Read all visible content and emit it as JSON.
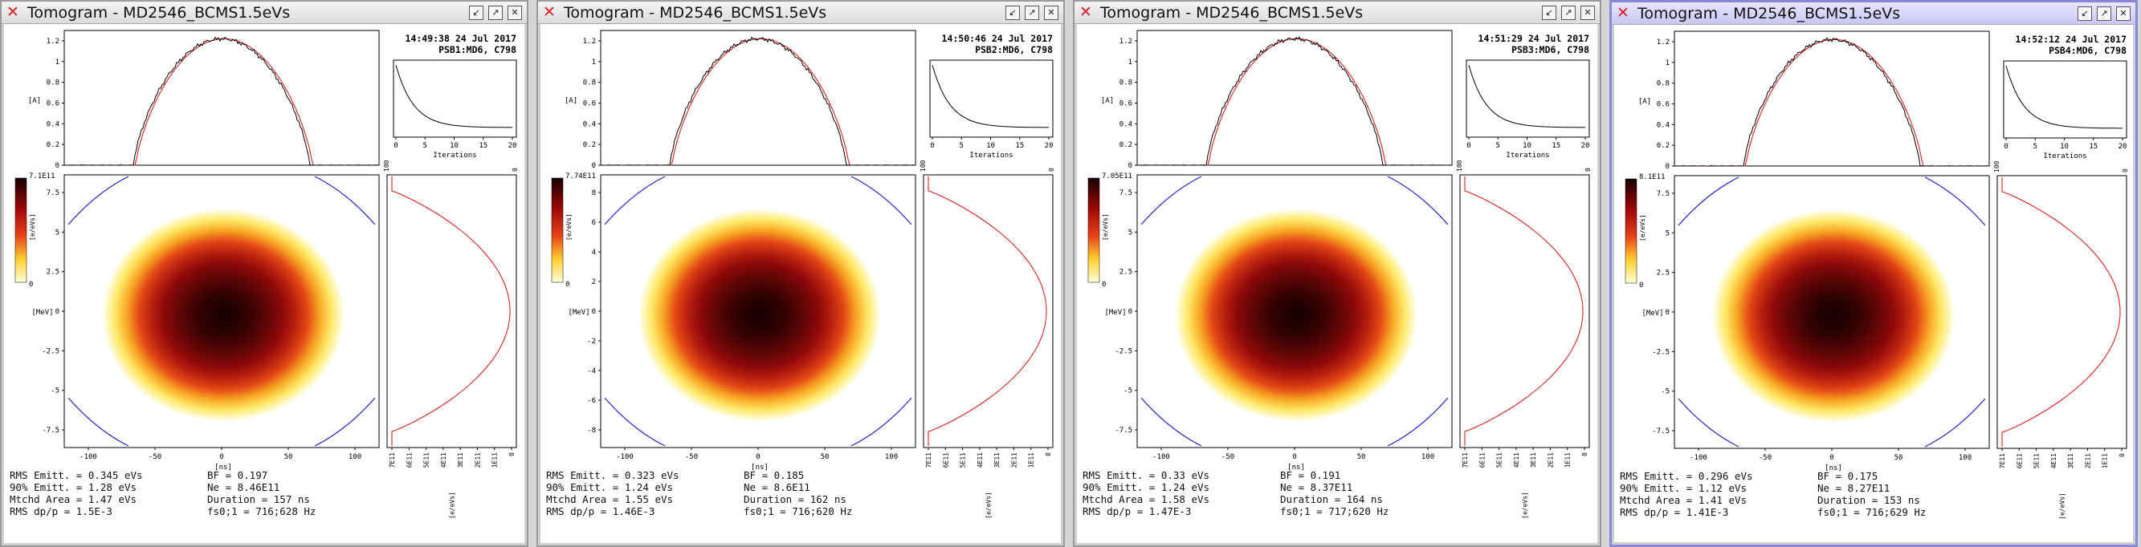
{
  "colors": {
    "title_active": "#c9c6f4",
    "measured_line": "#000000",
    "reconstructed_line": "#e02020",
    "separatrix": "#2222cc",
    "heat_dark": "#180000",
    "heat_light": "#fffff0"
  },
  "common": {
    "profile_ylabel": "[A]",
    "profile_yticks": [
      "1.2",
      "1",
      "0.8",
      "0.6",
      "0.4",
      "0.2",
      "0"
    ],
    "conv_xticks": [
      "0",
      "5",
      "10",
      "15",
      "20"
    ],
    "conv_xlabel": "Iterations",
    "phase_xticks": [
      "-100",
      "-50",
      "0",
      "50",
      "100"
    ],
    "phase_xlabel": "[ns]",
    "phase_ylabel": "[MeV]",
    "colorbar_zero": "0",
    "colorbar_unit": "[e/eVs]",
    "proj_unit": "[e/eVs]",
    "proj_top_left": "100",
    "proj_top_right": "0",
    "proj_xticks_bottom": [
      "7E11",
      "6E11",
      "5E11",
      "4E11",
      "3E11",
      "2E11",
      "1E11",
      "0"
    ],
    "icons": [
      "close-icon",
      "minimize-icon",
      "maximize-icon",
      "window-close-icon"
    ]
  },
  "windows": [
    {
      "title": "Tomogram - MD2546_BCMS1.5eVs",
      "timestamp": "14:49:38 24 Jul 2017",
      "ring": "PSB1:MD6, C798",
      "colorbar_max": "7.1E11",
      "phase_yticks": [
        "7.5",
        "5",
        "2.5",
        "0",
        "-2.5",
        "-5",
        "-7.5"
      ],
      "stats": {
        "rms_emitt": "RMS Emitt. = 0.345 eVs",
        "emitt90": "90% Emitt. = 1.28 eVs",
        "mtchd_area": "Mtchd Area = 1.47 eVs",
        "rms_dpp": "RMS dp/p = 1.5E-3",
        "bf": "BF = 0.197",
        "ne": "Ne = 8.46E11",
        "duration": "Duration = 157 ns",
        "fs": "fs0;1 = 716;628 Hz"
      }
    },
    {
      "title": "Tomogram - MD2546_BCMS1.5eVs",
      "timestamp": "14:50:46 24 Jul 2017",
      "ring": "PSB2:MD6, C798",
      "colorbar_max": "7.74E11",
      "phase_yticks": [
        "8",
        "6",
        "4",
        "2",
        "0",
        "-2",
        "-4",
        "-6",
        "-8"
      ],
      "stats": {
        "rms_emitt": "RMS Emitt. = 0.323 eVs",
        "emitt90": "90% Emitt. = 1.24 eVs",
        "mtchd_area": "Mtchd Area = 1.55 eVs",
        "rms_dpp": "RMS dp/p = 1.46E-3",
        "bf": "BF = 0.185",
        "ne": "Ne = 8.6E11",
        "duration": "Duration = 162 ns",
        "fs": "fs0;1 = 716;620 Hz"
      }
    },
    {
      "title": "Tomogram - MD2546_BCMS1.5eVs",
      "timestamp": "14:51:29 24 Jul 2017",
      "ring": "PSB3:MD6, C798",
      "colorbar_max": "7.05E11",
      "phase_yticks": [
        "7.5",
        "5",
        "2.5",
        "0",
        "-2.5",
        "-5",
        "-7.5"
      ],
      "stats": {
        "rms_emitt": "RMS Emitt. = 0.33 eVs",
        "emitt90": "90% Emitt. = 1.24 eVs",
        "mtchd_area": "Mtchd Area = 1.58 eVs",
        "rms_dpp": "RMS dp/p = 1.47E-3",
        "bf": "BF = 0.191",
        "ne": "Ne = 8.37E11",
        "duration": "Duration = 164 ns",
        "fs": "fs0;1 = 717;620 Hz"
      }
    },
    {
      "title": "Tomogram - MD2546_BCMS1.5eVs",
      "timestamp": "14:52:12 24 Jul 2017",
      "ring": "PSB4:MD6, C798",
      "colorbar_max": "8.1E11",
      "phase_yticks": [
        "7.5",
        "5",
        "2.5",
        "0",
        "-2.5",
        "-5",
        "-7.5"
      ],
      "stats": {
        "rms_emitt": "RMS Emitt. = 0.296 eVs",
        "emitt90": "90% Emitt. = 1.12 eVs",
        "mtchd_area": "Mtchd Area = 1.41 eVs",
        "rms_dpp": "RMS dp/p = 1.41E-3",
        "bf": "BF = 0.175",
        "ne": "Ne = 8.27E11",
        "duration": "Duration = 153 ns",
        "fs": "fs0;1 = 716;629 Hz"
      }
    }
  ]
}
